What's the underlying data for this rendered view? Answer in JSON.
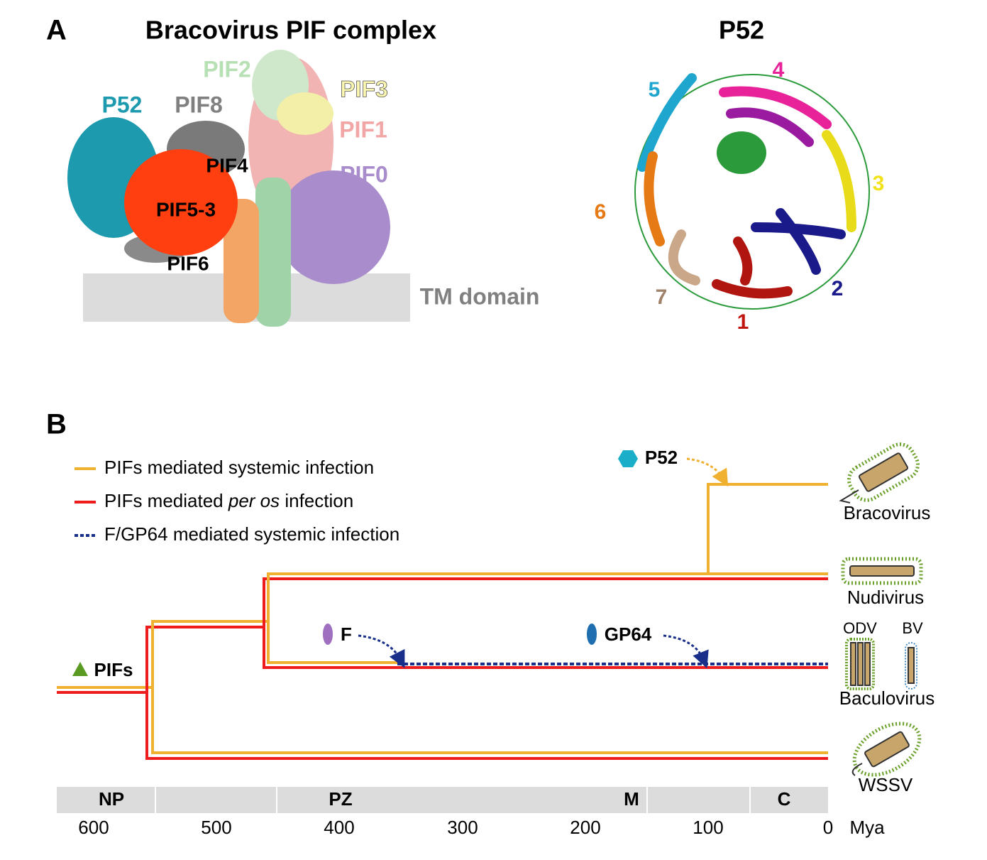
{
  "panel_a": {
    "letter": "A",
    "title": "Bracovirus PIF complex",
    "labels": {
      "pif2": "PIF2",
      "pif3": "PIF3",
      "p52": "P52",
      "pif8": "PIF8",
      "pif1": "PIF1",
      "pif4": "PIF4",
      "pif0": "PIF0",
      "pif53": "PIF5-3",
      "pif6": "PIF6"
    },
    "tm": "TM domain",
    "structure_title": "P52",
    "blades": [
      "1",
      "2",
      "3",
      "4",
      "5",
      "6",
      "7"
    ]
  },
  "panel_b": {
    "letter": "B",
    "legend": [
      {
        "text": "PIFs mediated systemic infection"
      },
      {
        "before": "PIFs mediated ",
        "italic": "per os",
        "after": " infection"
      },
      {
        "text": "F/GP64 mediated systemic infection"
      }
    ],
    "markers": {
      "pifs": "PIFs",
      "p52": "P52",
      "f": "F",
      "gp64": "GP64"
    },
    "taxa": {
      "bracovirus": "Bracovirus",
      "nudivirus": "Nudivirus",
      "odv": "ODV",
      "bv": "BV",
      "baculovirus": "Baculovirus",
      "wssv": "WSSV"
    },
    "eras": [
      "NP",
      "PZ",
      "M",
      "C"
    ],
    "ticks": [
      "600",
      "500",
      "400",
      "300",
      "200",
      "100",
      "0"
    ],
    "unit": "Mya"
  }
}
